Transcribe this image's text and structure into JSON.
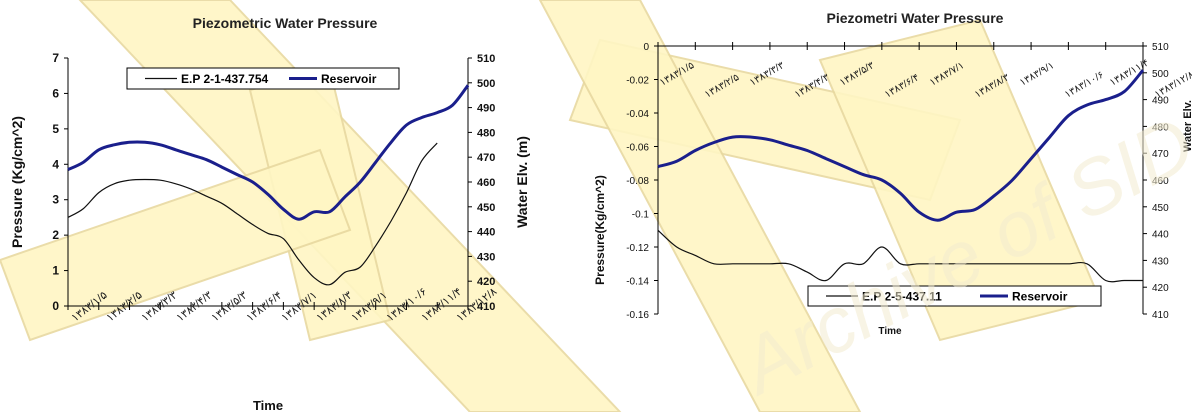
{
  "watermark": {
    "text": "Archive of SID"
  },
  "colors": {
    "pressure": "#111111",
    "reservoir": "#1a1f8c",
    "watermark_fill": "#fff6c4",
    "watermark_line": "#e8d9a0"
  },
  "chart_data": [
    {
      "type": "line",
      "title": "Piezometric Water Pressure",
      "xlabel": "Time",
      "ylabel": "Pressure (Kg/cm^2)",
      "y2label": "Water Elv. (m)",
      "ylim": [
        0,
        7
      ],
      "y2lim": [
        410,
        510
      ],
      "yticks": [
        "0",
        "1",
        "2",
        "3",
        "4",
        "5",
        "6",
        "7"
      ],
      "y2ticks": [
        "410",
        "420",
        "430",
        "440",
        "450",
        "460",
        "470",
        "480",
        "490",
        "500",
        "510"
      ],
      "x_tick_labels": [
        "۱۳۸۳/۱/۵",
        "۱۳۸۳/۲/۵",
        "۱۳۸۳/۳/۳",
        "۱۳۸۳/۴/۳",
        "۱۳۸۳/۵/۳",
        "۱۳۸۳/۶/۴",
        "۱۳۸۳/۷/۱",
        "۱۳۸۳/۸/۳",
        "۱۳۸۳/۹/۱",
        "۱۳۸۳/۱۰/۶",
        "۱۳۸۳/۱۱/۴",
        "۱۳۸۳/۱۲/۸"
      ],
      "legend": {
        "placement": "top-left",
        "entries": [
          "E.P 2-1-437.754",
          "Reservoir"
        ]
      },
      "series": [
        {
          "name": "E.P 2-1-437.754",
          "axis": "left",
          "x": [
            0,
            0.5,
            1,
            1.5,
            2,
            2.5,
            3,
            3.5,
            4,
            4.5,
            5,
            5.5,
            6,
            6.5,
            7,
            7.5,
            8,
            8.5,
            9,
            9.5,
            10,
            10.5,
            11,
            11.5,
            12
          ],
          "y": [
            2.5,
            2.75,
            3.2,
            3.45,
            3.55,
            3.57,
            3.55,
            3.45,
            3.3,
            3.1,
            2.9,
            2.6,
            2.3,
            2.05,
            1.9,
            1.3,
            0.8,
            0.6,
            0.95,
            1.1,
            1.7,
            2.4,
            3.2,
            4.1,
            4.6
          ]
        },
        {
          "name": "Reservoir",
          "axis": "right",
          "x": [
            0,
            0.5,
            1,
            1.5,
            2,
            2.5,
            3,
            3.5,
            4,
            4.5,
            5,
            5.5,
            6,
            6.5,
            7,
            7.5,
            8,
            8.5,
            9,
            9.5,
            10,
            10.5,
            11,
            11.5,
            12,
            12.5,
            13
          ],
          "y": [
            465,
            468,
            473,
            475,
            476,
            476,
            475,
            473,
            471,
            469,
            466,
            463,
            460,
            455,
            449,
            445,
            448,
            448,
            454,
            460,
            468,
            476,
            483,
            486,
            488,
            491,
            499
          ]
        }
      ]
    },
    {
      "type": "line",
      "title": "Piezometri Water Pressure",
      "xlabel": "Time",
      "ylabel": "Pressure(Kg/cm^2)",
      "y2label": "Water Elv.",
      "ylim": [
        -0.16,
        0
      ],
      "y2lim": [
        410,
        510
      ],
      "yticks": [
        "0",
        "-0.02",
        "-0.04",
        "-0.06",
        "-0.08",
        "-0.1",
        "-0.12",
        "-0.14",
        "-0.16"
      ],
      "y2ticks": [
        "410",
        "420",
        "430",
        "440",
        "450",
        "460",
        "470",
        "480",
        "490",
        "500",
        "510"
      ],
      "x_tick_labels": [
        "۱۳۸۳/۱/۵",
        "۱۳۸۳/۲/۵",
        "۱۳۸۳/۳/۳",
        "۱۳۸۳/۴/۳",
        "۱۳۸۳/۵/۳",
        "۱۳۸۳/۶/۴",
        "۱۳۸۳/۷/۱",
        "۱۳۸۳/۸/۳",
        "۱۳۸۳/۹/۱",
        "۱۳۸۳/۱۰/۶",
        "۱۳۸۳/۱۱/۴",
        "۱۳۸۳/۱۲/۸"
      ],
      "legend": {
        "placement": "bottom-center",
        "entries": [
          "E.P 2-5-437.11",
          "Reservoir"
        ]
      },
      "series": [
        {
          "name": "E.P 2-5-437.11",
          "axis": "left",
          "x": [
            0,
            0.5,
            1,
            1.5,
            2,
            2.5,
            3,
            3.5,
            4,
            4.5,
            5,
            5.5,
            6,
            6.5,
            7,
            7.5,
            8,
            8.5,
            9,
            9.5,
            10,
            10.5,
            11,
            11.5,
            12,
            12.5,
            13
          ],
          "y": [
            -0.11,
            -0.12,
            -0.125,
            -0.13,
            -0.13,
            -0.13,
            -0.13,
            -0.13,
            -0.135,
            -0.14,
            -0.13,
            -0.13,
            -0.12,
            -0.13,
            -0.13,
            -0.13,
            -0.13,
            -0.13,
            -0.13,
            -0.13,
            -0.13,
            -0.13,
            -0.13,
            -0.13,
            -0.14,
            -0.14,
            -0.14
          ]
        },
        {
          "name": "Reservoir",
          "axis": "right",
          "x": [
            0,
            0.5,
            1,
            1.5,
            2,
            2.5,
            3,
            3.5,
            4,
            4.5,
            5,
            5.5,
            6,
            6.5,
            7,
            7.5,
            8,
            8.5,
            9,
            9.5,
            10,
            10.5,
            11,
            11.5,
            12,
            12.5,
            13
          ],
          "y": [
            465,
            467,
            471,
            474,
            476,
            476,
            475,
            473,
            471,
            468,
            465,
            462,
            460,
            455,
            448,
            445,
            448,
            449,
            454,
            460,
            468,
            476,
            484,
            488,
            490,
            493,
            501
          ]
        }
      ]
    }
  ]
}
